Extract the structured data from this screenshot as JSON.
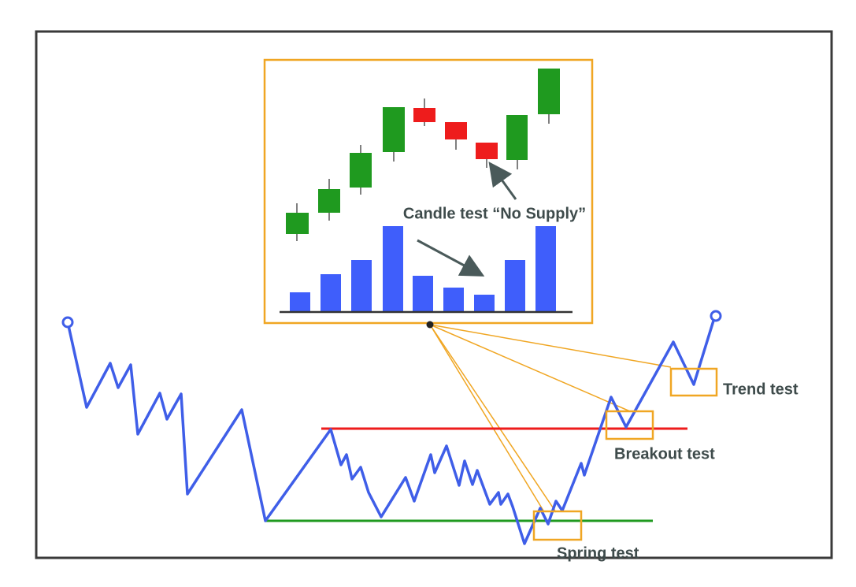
{
  "callout": {
    "label": "Candle test “No Supply”"
  },
  "tests": [
    {
      "label": "Trend test"
    },
    {
      "label": "Breakout test"
    },
    {
      "label": "Spring test"
    }
  ]
}
